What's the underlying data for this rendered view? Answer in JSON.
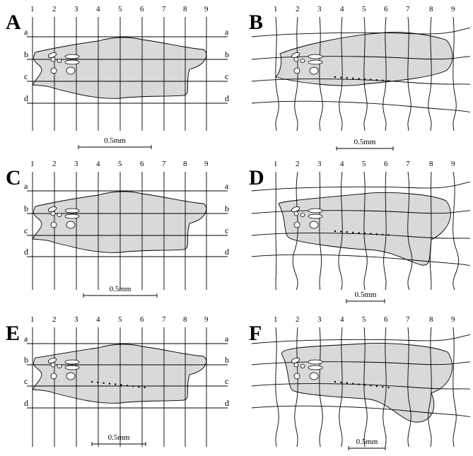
{
  "panels": [
    {
      "id": "A",
      "scale": "0.5mm",
      "cols": [
        "1",
        "2",
        "3",
        "4",
        "5",
        "6",
        "7",
        "8",
        "9"
      ],
      "rows": [
        "a",
        "b",
        "c",
        "d"
      ]
    },
    {
      "id": "B",
      "scale": "0.5mm",
      "cols": [
        "1",
        "2",
        "3",
        "4",
        "5",
        "6",
        "7",
        "8",
        "9"
      ],
      "rows": [
        "a",
        "b",
        "c",
        "d"
      ]
    },
    {
      "id": "C",
      "scale": "0.5mm",
      "cols": [
        "1",
        "2",
        "3",
        "4",
        "5",
        "6",
        "7",
        "8",
        "9"
      ],
      "rows": [
        "a",
        "b",
        "c",
        "d"
      ]
    },
    {
      "id": "D",
      "scale": "0.5mm",
      "cols": [
        "1",
        "2",
        "3",
        "4",
        "5",
        "6",
        "7",
        "8",
        "9"
      ],
      "rows": [
        "a",
        "b",
        "c",
        "d"
      ]
    },
    {
      "id": "E",
      "scale": "0.5mm",
      "cols": [
        "1",
        "2",
        "3",
        "4",
        "5",
        "6",
        "7",
        "8",
        "9"
      ],
      "rows": [
        "a",
        "b",
        "c",
        "d"
      ]
    },
    {
      "id": "F",
      "scale": "0.5mm",
      "cols": [
        "1",
        "2",
        "3",
        "4",
        "5",
        "6",
        "7",
        "8",
        "9"
      ],
      "rows": [
        "a",
        "b",
        "c",
        "d"
      ]
    }
  ]
}
